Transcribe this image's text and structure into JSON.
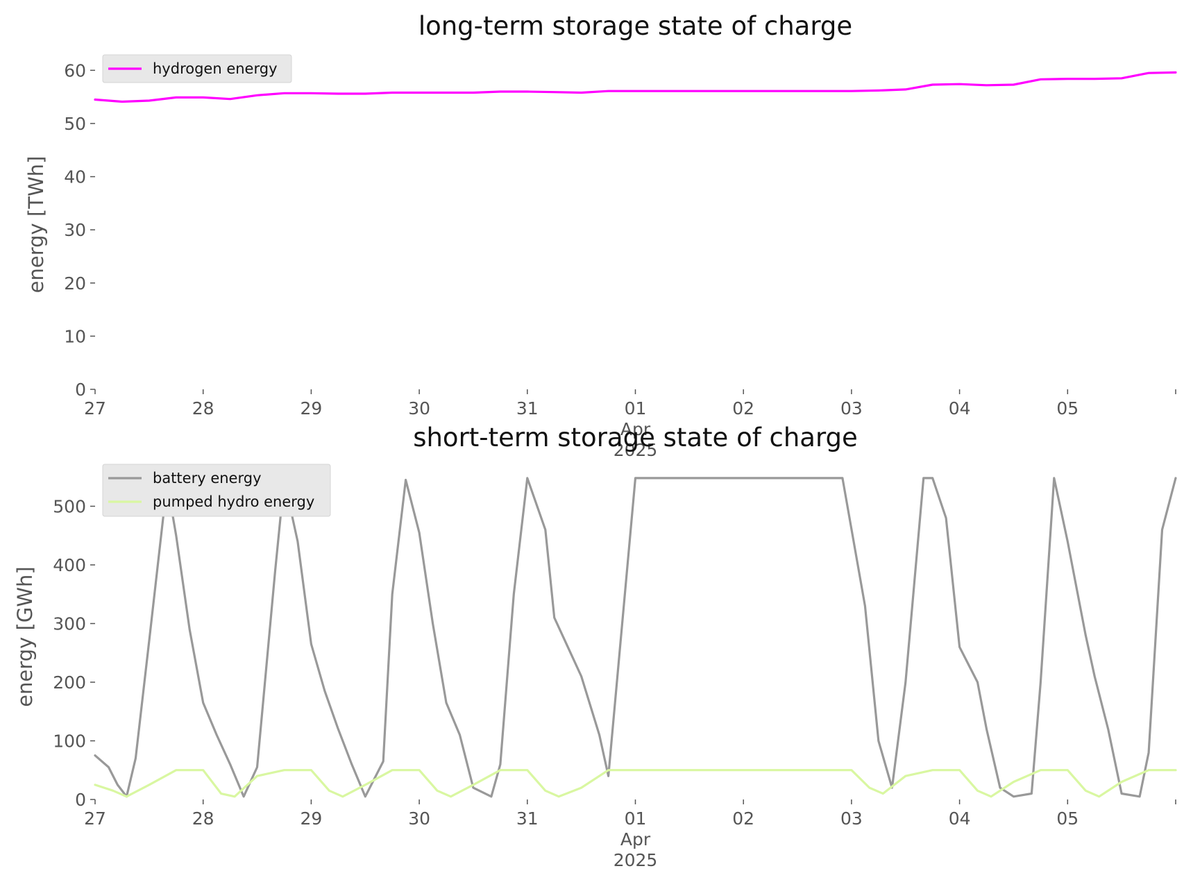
{
  "chart_data": [
    {
      "type": "line",
      "title": "long-term storage state of charge",
      "xlabel": "",
      "ylabel": "energy [TWh]",
      "xlim": [
        "2025-03-27",
        "2025-04-06"
      ],
      "ylim": [
        0,
        62
      ],
      "yticks": [
        0,
        10,
        20,
        30,
        40,
        50,
        60
      ],
      "xticks": [
        "27",
        "28",
        "29",
        "30",
        "31",
        "01",
        "02",
        "03",
        "04",
        "05"
      ],
      "xtick_sub": {
        "month": "Apr",
        "year": "2025"
      },
      "grid": false,
      "legend": "top-left",
      "series": [
        {
          "name": "hydrogen energy",
          "color": "#ff00ff",
          "x": [
            "2025-03-27 00:00",
            "2025-03-27 06:00",
            "2025-03-27 12:00",
            "2025-03-27 18:00",
            "2025-03-28 00:00",
            "2025-03-28 06:00",
            "2025-03-28 12:00",
            "2025-03-28 18:00",
            "2025-03-29 00:00",
            "2025-03-29 06:00",
            "2025-03-29 12:00",
            "2025-03-29 18:00",
            "2025-03-30 00:00",
            "2025-03-30 06:00",
            "2025-03-30 12:00",
            "2025-03-30 18:00",
            "2025-03-31 00:00",
            "2025-03-31 06:00",
            "2025-03-31 12:00",
            "2025-03-31 18:00",
            "2025-04-01 00:00",
            "2025-04-01 12:00",
            "2025-04-02 00:00",
            "2025-04-02 12:00",
            "2025-04-03 00:00",
            "2025-04-03 06:00",
            "2025-04-03 12:00",
            "2025-04-03 18:00",
            "2025-04-04 00:00",
            "2025-04-04 06:00",
            "2025-04-04 12:00",
            "2025-04-04 18:00",
            "2025-04-05 00:00",
            "2025-04-05 06:00",
            "2025-04-05 12:00",
            "2025-04-05 18:00",
            "2025-04-06 00:00"
          ],
          "values": [
            54.5,
            54.1,
            54.3,
            54.9,
            54.9,
            54.6,
            55.3,
            55.7,
            55.7,
            55.6,
            55.6,
            55.8,
            55.8,
            55.8,
            55.8,
            56.0,
            56.0,
            55.9,
            55.8,
            56.1,
            56.1,
            56.1,
            56.1,
            56.1,
            56.1,
            56.2,
            56.4,
            57.3,
            57.4,
            57.2,
            57.3,
            58.3,
            58.4,
            58.4,
            58.5,
            59.5,
            59.6
          ]
        }
      ]
    },
    {
      "type": "line",
      "title": "short-term storage state of charge",
      "xlabel": "",
      "ylabel": "energy [GWh]",
      "xlim": [
        "2025-03-27",
        "2025-04-06"
      ],
      "ylim": [
        0,
        555
      ],
      "yticks": [
        0,
        100,
        200,
        300,
        400,
        500
      ],
      "xticks": [
        "27",
        "28",
        "29",
        "30",
        "31",
        "01",
        "02",
        "03",
        "04",
        "05"
      ],
      "xtick_sub": {
        "month": "Apr",
        "year": "2025"
      },
      "grid": false,
      "legend": "top-left",
      "series": [
        {
          "name": "battery energy",
          "color": "#999999",
          "x": [
            "2025-03-27 00:00",
            "2025-03-27 03:00",
            "2025-03-27 05:00",
            "2025-03-27 07:00",
            "2025-03-27 09:00",
            "2025-03-27 12:00",
            "2025-03-27 16:00",
            "2025-03-27 18:00",
            "2025-03-27 21:00",
            "2025-03-28 00:00",
            "2025-03-28 03:00",
            "2025-03-28 06:00",
            "2025-03-28 09:00",
            "2025-03-28 12:00",
            "2025-03-28 16:00",
            "2025-03-28 18:00",
            "2025-03-28 21:00",
            "2025-03-29 00:00",
            "2025-03-29 03:00",
            "2025-03-29 06:00",
            "2025-03-29 09:00",
            "2025-03-29 12:00",
            "2025-03-29 16:00",
            "2025-03-29 18:00",
            "2025-03-29 21:00",
            "2025-03-30 00:00",
            "2025-03-30 03:00",
            "2025-03-30 06:00",
            "2025-03-30 09:00",
            "2025-03-30 12:00",
            "2025-03-30 16:00",
            "2025-03-30 18:00",
            "2025-03-30 21:00",
            "2025-03-31 00:00",
            "2025-03-31 04:00",
            "2025-03-31 06:00",
            "2025-03-31 09:00",
            "2025-03-31 12:00",
            "2025-03-31 16:00",
            "2025-03-31 18:00",
            "2025-04-01 00:00",
            "2025-04-01 12:00",
            "2025-04-02 00:00",
            "2025-04-02 12:00",
            "2025-04-02 22:00",
            "2025-04-03 03:00",
            "2025-04-03 06:00",
            "2025-04-03 09:00",
            "2025-04-03 12:00",
            "2025-04-03 16:00",
            "2025-04-03 18:00",
            "2025-04-03 21:00",
            "2025-04-04 00:00",
            "2025-04-04 04:00",
            "2025-04-04 06:00",
            "2025-04-04 09:00",
            "2025-04-04 12:00",
            "2025-04-04 16:00",
            "2025-04-04 18:00",
            "2025-04-04 21:00",
            "2025-04-05 00:00",
            "2025-04-05 04:00",
            "2025-04-05 06:00",
            "2025-04-05 09:00",
            "2025-04-05 12:00",
            "2025-04-05 16:00",
            "2025-04-05 18:00",
            "2025-04-05 21:00",
            "2025-04-06 00:00"
          ],
          "values": [
            75,
            55,
            25,
            5,
            70,
            270,
            540,
            450,
            290,
            165,
            110,
            60,
            5,
            55,
            390,
            545,
            440,
            265,
            185,
            120,
            60,
            5,
            65,
            350,
            545,
            455,
            300,
            165,
            110,
            20,
            5,
            60,
            350,
            548,
            460,
            310,
            260,
            210,
            110,
            40,
            548,
            548,
            548,
            548,
            548,
            330,
            100,
            20,
            200,
            548,
            548,
            480,
            260,
            200,
            120,
            20,
            5,
            10,
            200,
            548,
            440,
            280,
            210,
            120,
            10,
            5,
            80,
            460,
            548
          ]
        },
        {
          "name": "pumped hydro energy",
          "color": "#d9f7a1",
          "x": [
            "2025-03-27 00:00",
            "2025-03-27 04:00",
            "2025-03-27 07:00",
            "2025-03-27 12:00",
            "2025-03-27 18:00",
            "2025-03-28 00:00",
            "2025-03-28 04:00",
            "2025-03-28 07:00",
            "2025-03-28 12:00",
            "2025-03-28 18:00",
            "2025-03-29 00:00",
            "2025-03-29 04:00",
            "2025-03-29 07:00",
            "2025-03-29 12:00",
            "2025-03-29 18:00",
            "2025-03-30 00:00",
            "2025-03-30 04:00",
            "2025-03-30 07:00",
            "2025-03-30 12:00",
            "2025-03-30 18:00",
            "2025-03-31 00:00",
            "2025-03-31 04:00",
            "2025-03-31 07:00",
            "2025-03-31 12:00",
            "2025-03-31 18:00",
            "2025-04-01 00:00",
            "2025-04-01 12:00",
            "2025-04-02 00:00",
            "2025-04-02 12:00",
            "2025-04-03 00:00",
            "2025-04-03 04:00",
            "2025-04-03 07:00",
            "2025-04-03 12:00",
            "2025-04-03 18:00",
            "2025-04-04 00:00",
            "2025-04-04 04:00",
            "2025-04-04 07:00",
            "2025-04-04 12:00",
            "2025-04-04 18:00",
            "2025-04-05 00:00",
            "2025-04-05 04:00",
            "2025-04-05 07:00",
            "2025-04-05 12:00",
            "2025-04-05 18:00",
            "2025-04-06 00:00"
          ],
          "values": [
            25,
            15,
            5,
            25,
            50,
            50,
            10,
            5,
            40,
            50,
            50,
            15,
            5,
            25,
            50,
            50,
            15,
            5,
            25,
            50,
            50,
            15,
            5,
            20,
            50,
            50,
            50,
            50,
            50,
            50,
            20,
            10,
            40,
            50,
            50,
            15,
            5,
            30,
            50,
            50,
            15,
            5,
            30,
            50,
            50
          ]
        }
      ]
    }
  ]
}
